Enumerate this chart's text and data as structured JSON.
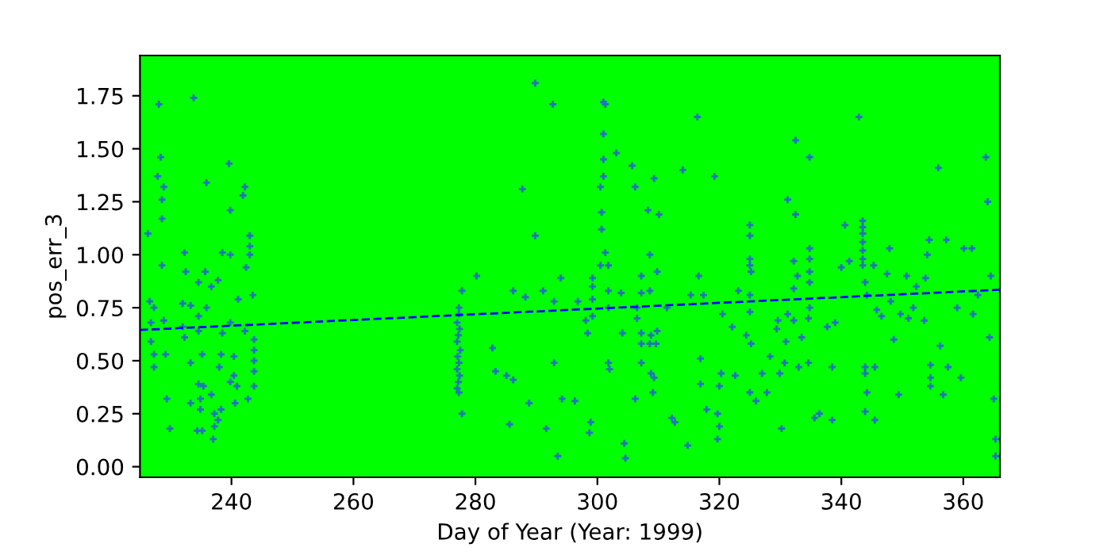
{
  "chart_data": {
    "type": "scatter",
    "xlabel": "Day of Year (Year: 1999)",
    "ylabel": "pos_err_3",
    "xlim": [
      225,
      366
    ],
    "xticks": [
      240,
      260,
      280,
      300,
      320,
      340,
      360
    ],
    "ylim": [
      -0.05,
      1.94
    ],
    "yticks": [
      {
        "value": 0,
        "label": "0.00"
      },
      {
        "value": 0.25,
        "label": "0.25"
      },
      {
        "value": 0.5,
        "label": "0.50"
      },
      {
        "value": 0.75,
        "label": "0.75"
      },
      {
        "value": 1.0,
        "label": "1.00"
      },
      {
        "value": 1.25,
        "label": "1.25"
      },
      {
        "value": 1.5,
        "label": "1.50"
      },
      {
        "value": 1.75,
        "label": "1.75"
      }
    ],
    "grid": false,
    "marker": "cross",
    "series": [
      {
        "color": "#1f77b4",
        "x": [
          228.1,
          233.8,
          228.4,
          227.9,
          228.9,
          228.6,
          228.6,
          226.3,
          239.6,
          235.9,
          242.2,
          239.8,
          241.9,
          243,
          243,
          243,
          228.6,
          232.3,
          238.5,
          239.8,
          232.5,
          234.6,
          235.7,
          237.8,
          236.7,
          242.4,
          243.5,
          241.1,
          226.6,
          227.3,
          232.0,
          233.3,
          234.6,
          235.9,
          226.8,
          228.9,
          232.0,
          234.6,
          239.8,
          238.5,
          226.8,
          232.3,
          242.2,
          243.7,
          243.7,
          243.7,
          243.7,
          227.3,
          229.2,
          235.2,
          238.3,
          240.4,
          227.3,
          233.3,
          238.0,
          240.4,
          239.8,
          240.9,
          243.7,
          234.6,
          235.4,
          229.4,
          236.7,
          234.9,
          233.3,
          240.6,
          242.7,
          234.9,
          237.2,
          238.3,
          237.8,
          237.2,
          229.9,
          234.4,
          235.2,
          237.0,
          277.8,
          277.3,
          277.3,
          277.0,
          277.4,
          277.2,
          277.0,
          277.5,
          277.1,
          277.3,
          277.0,
          277.4,
          277.2,
          277.0,
          277.3,
          277.8,
          289.8,
          292.7,
          287.7,
          289.8,
          280.2,
          286.2,
          288.2,
          291.1,
          294.0,
          292.9,
          296.8,
          282.8,
          283.3,
          285.1,
          286.2,
          292.9,
          288.8,
          294.2,
          296.3,
          285.6,
          291.6,
          293.5,
          301.0,
          301.3,
          301.0,
          301.0,
          301.0,
          300.5,
          300.7,
          300.7,
          301.3,
          301.8,
          300.5,
          299.2,
          299.2,
          301.8,
          299.2,
          301.8,
          298.1,
          299.2,
          298.4,
          301.8,
          302.0,
          298.9,
          298.7,
          304.4,
          304.6,
          303.1,
          305.7,
          306.2,
          309.3,
          314.0,
          308.3,
          310.1,
          308.6,
          303.9,
          307.2,
          309.8,
          308.6,
          307.2,
          306.5,
          306.5,
          311.4,
          304.1,
          307.2,
          307.2,
          308.8,
          309.8,
          308.6,
          309.6,
          307.2,
          308.8,
          309.3,
          309.1,
          306.2,
          312.2,
          312.7,
          314.8,
          315.3,
          316.4,
          319.2,
          316.6,
          317.4,
          320.5,
          322.1,
          323.1,
          316.9,
          320.3,
          316.9,
          320.0,
          322.6,
          317.9,
          319.7,
          320.0,
          319.7,
          325.0,
          325.0,
          325.0,
          325.0,
          325.2,
          325.0,
          325.0,
          324.4,
          325.2,
          325.0,
          326.0,
          327.8,
          327.0,
          328.3,
          329.9,
          330.7,
          330.9,
          329.4,
          329.6,
          331.2,
          332.2,
          333.5,
          333.0,
          334.6,
          330.2,
          331.2,
          332.5,
          334.8,
          332.5,
          332.2,
          332.2,
          332.8,
          334.8,
          334.8,
          334.8,
          334.8,
          334.8,
          334.6,
          335.6,
          336.4,
          337.7,
          339.0,
          338.5,
          338.5,
          340.0,
          341.3,
          340.6,
          342.9,
          343.5,
          343.5,
          343.5,
          343.5,
          343.5,
          343.5,
          343.5,
          343.9,
          344.2,
          343.9,
          343.9,
          344.2,
          343.9,
          345.5,
          345.3,
          345.5,
          345.8,
          346.6,
          347.9,
          347.5,
          348.1,
          348.6,
          349.4,
          349.7,
          350.7,
          351.0,
          351.8,
          352.3,
          353.6,
          353.8,
          354.1,
          354.4,
          354.6,
          354.6,
          354.6,
          356.2,
          355.9,
          356.7,
          357.2,
          357.5,
          359.0,
          359.6,
          360.1,
          361.4,
          361.6,
          362.4,
          363.7,
          364.0,
          364.5,
          364.3,
          365.0,
          365.3,
          365.3
        ],
        "values": [
          1.71,
          1.74,
          1.46,
          1.37,
          1.32,
          1.26,
          1.17,
          1.1,
          1.43,
          1.34,
          1.32,
          1.21,
          1.28,
          1.09,
          1.04,
          1.0,
          0.95,
          1.01,
          1.01,
          1.0,
          0.92,
          0.87,
          0.92,
          0.88,
          0.85,
          0.94,
          0.81,
          0.79,
          0.78,
          0.75,
          0.77,
          0.76,
          0.71,
          0.75,
          0.68,
          0.69,
          0.66,
          0.64,
          0.68,
          0.63,
          0.59,
          0.61,
          0.64,
          0.6,
          0.55,
          0.5,
          0.45,
          0.53,
          0.53,
          0.53,
          0.53,
          0.52,
          0.47,
          0.49,
          0.47,
          0.43,
          0.4,
          0.38,
          0.38,
          0.39,
          0.38,
          0.32,
          0.34,
          0.32,
          0.3,
          0.3,
          0.32,
          0.27,
          0.25,
          0.27,
          0.22,
          0.19,
          0.18,
          0.17,
          0.17,
          0.13,
          0.83,
          0.75,
          0.72,
          0.68,
          0.65,
          0.62,
          0.59,
          0.55,
          0.52,
          0.49,
          0.46,
          0.43,
          0.4,
          0.37,
          0.35,
          0.25,
          1.81,
          1.71,
          1.31,
          1.09,
          0.9,
          0.83,
          0.8,
          0.83,
          0.89,
          0.78,
          0.78,
          0.56,
          0.45,
          0.43,
          0.41,
          0.49,
          0.3,
          0.32,
          0.31,
          0.2,
          0.18,
          0.05,
          1.72,
          1.71,
          1.57,
          1.45,
          1.37,
          1.32,
          1.2,
          1.12,
          1.01,
          0.95,
          0.95,
          0.89,
          0.85,
          0.83,
          0.79,
          0.75,
          0.69,
          0.71,
          0.63,
          0.49,
          0.46,
          0.21,
          0.16,
          0.11,
          0.04,
          1.48,
          1.42,
          1.32,
          1.36,
          1.4,
          1.21,
          1.19,
          1.0,
          0.82,
          0.9,
          0.92,
          0.83,
          0.82,
          0.75,
          0.7,
          0.75,
          0.63,
          0.63,
          0.58,
          0.62,
          0.64,
          0.58,
          0.58,
          0.49,
          0.44,
          0.42,
          0.35,
          0.32,
          0.23,
          0.21,
          0.1,
          0.81,
          1.65,
          1.37,
          0.9,
          0.81,
          0.72,
          0.66,
          0.83,
          0.51,
          0.44,
          0.39,
          0.38,
          0.43,
          0.27,
          0.25,
          0.19,
          0.13,
          1.14,
          1.09,
          0.98,
          0.95,
          0.92,
          0.81,
          0.73,
          0.62,
          0.58,
          0.35,
          0.31,
          0.35,
          0.44,
          0.52,
          0.44,
          0.49,
          0.59,
          0.65,
          0.69,
          0.72,
          0.69,
          0.61,
          0.47,
          0.49,
          0.18,
          1.26,
          1.54,
          1.46,
          1.19,
          0.97,
          0.84,
          0.9,
          1.03,
          0.98,
          0.92,
          0.87,
          0.75,
          0.7,
          0.23,
          0.25,
          0.66,
          0.68,
          0.47,
          0.22,
          0.94,
          0.97,
          1.14,
          1.65,
          1.16,
          1.13,
          1.1,
          1.06,
          1.02,
          0.98,
          0.95,
          0.87,
          0.81,
          0.47,
          0.44,
          0.35,
          0.26,
          0.22,
          0.95,
          0.47,
          0.74,
          0.71,
          1.03,
          0.91,
          0.78,
          0.6,
          0.34,
          0.72,
          0.9,
          0.7,
          0.75,
          0.85,
          0.69,
          0.89,
          1.0,
          1.07,
          0.48,
          0.42,
          0.38,
          0.57,
          1.41,
          0.34,
          1.07,
          0.47,
          0.75,
          0.42,
          1.03,
          1.03,
          0.72,
          0.81,
          1.46,
          1.25,
          0.9,
          0.61,
          0.32,
          0.13,
          0.05
        ]
      },
      {
        "type": "line",
        "color": "#0000ff",
        "line_style": "dashed",
        "marker": "none",
        "x": [
          225,
          366
        ],
        "values": [
          0.645,
          0.835
        ]
      }
    ]
  }
}
